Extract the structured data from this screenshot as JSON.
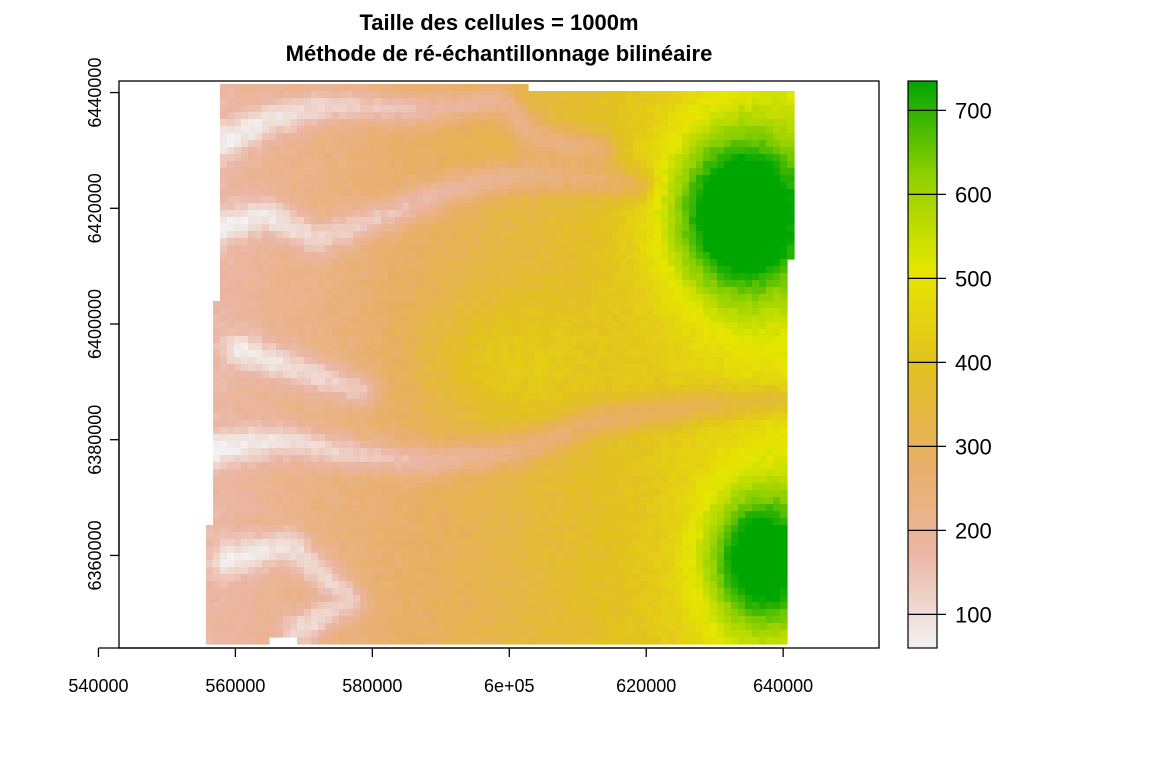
{
  "title": {
    "line1": "Taille des cellules = 1000m",
    "line2": "Méthode de ré-échantillonnage bilinéaire"
  },
  "chart_data": {
    "type": "heatmap",
    "title": "Taille des cellules = 1000m\nMéthode de ré-échantillonnage bilinéaire",
    "xlabel": "",
    "ylabel": "",
    "xlim": [
      543000,
      654000
    ],
    "ylim": [
      6344000,
      6442000
    ],
    "x_ticks": [
      {
        "value": 540000,
        "label": "540000"
      },
      {
        "value": 560000,
        "label": "560000"
      },
      {
        "value": 580000,
        "label": "580000"
      },
      {
        "value": 600000,
        "label": "6e+05"
      },
      {
        "value": 620000,
        "label": "620000"
      },
      {
        "value": 640000,
        "label": "640000"
      }
    ],
    "y_ticks": [
      {
        "value": 6440000,
        "label": "6440000"
      },
      {
        "value": 6420000,
        "label": "6420000"
      },
      {
        "value": 6400000,
        "label": "6400000"
      },
      {
        "value": 6380000,
        "label": "6380000"
      },
      {
        "value": 6360000,
        "label": "6360000"
      }
    ],
    "legend": {
      "placement": "right",
      "range": [
        60,
        735
      ],
      "ticks": [
        {
          "value": 100,
          "label": "100"
        },
        {
          "value": 200,
          "label": "200"
        },
        {
          "value": 300,
          "label": "300"
        },
        {
          "value": 400,
          "label": "400"
        },
        {
          "value": 500,
          "label": "500"
        },
        {
          "value": 600,
          "label": "600"
        },
        {
          "value": 700,
          "label": "700"
        }
      ],
      "colors": [
        "#f2f2f2",
        "#ebb6a4",
        "#e8af64",
        "#e2c21f",
        "#e6e600",
        "#8fd000",
        "#00a600"
      ]
    },
    "grid": false
  }
}
